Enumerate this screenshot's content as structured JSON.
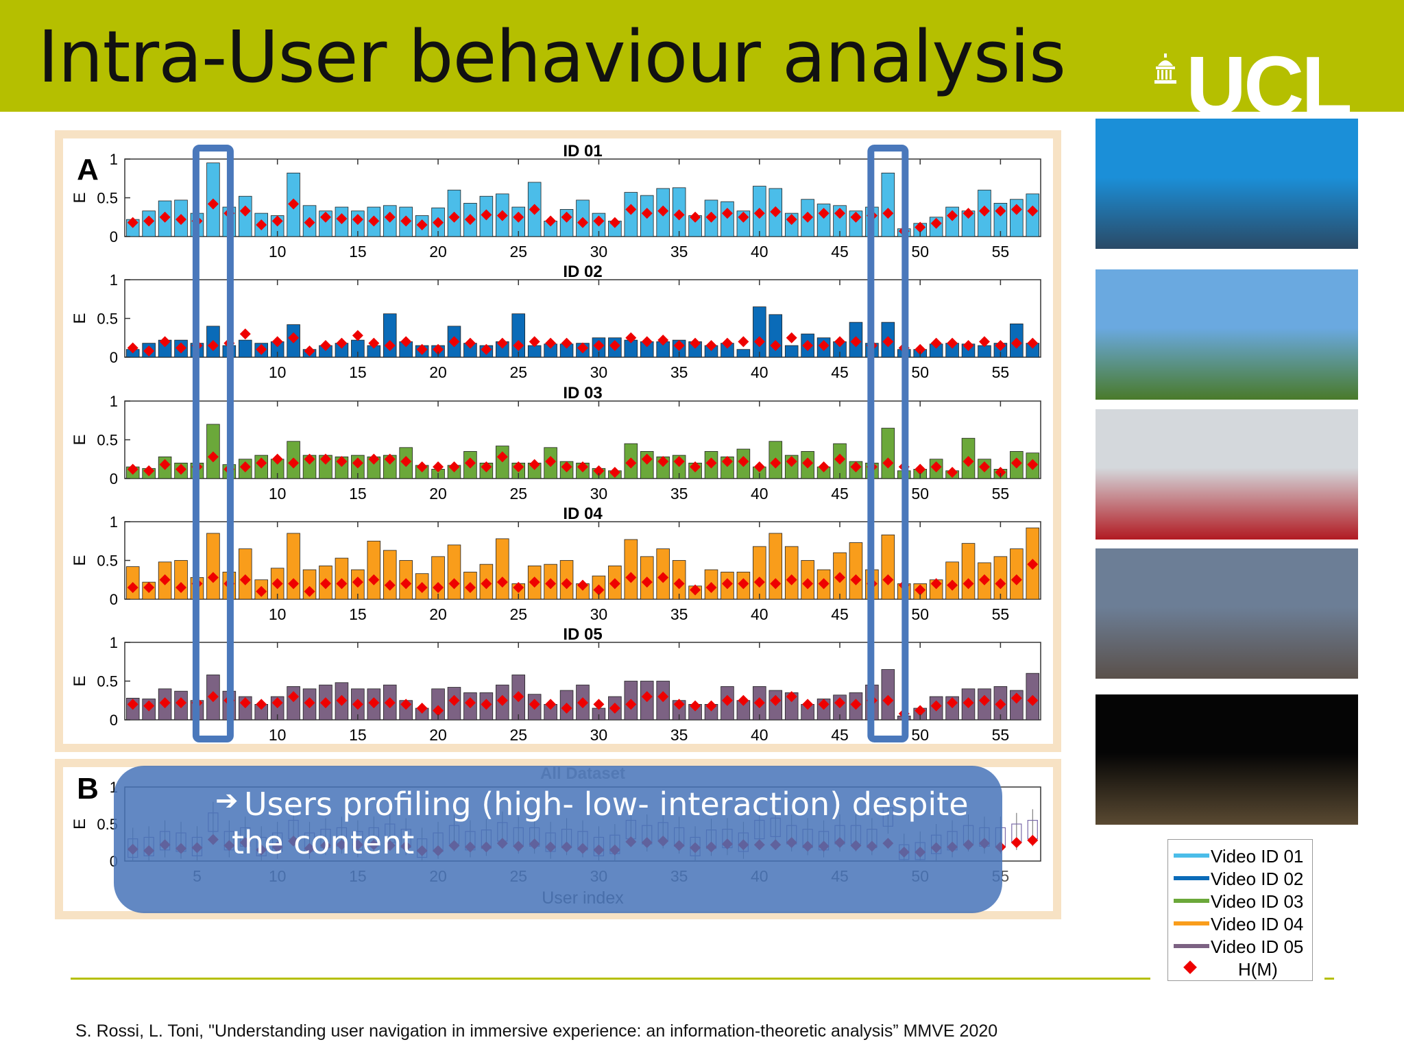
{
  "slide": {
    "title": "Intra-User behaviour analysis",
    "logo_text": "UCL",
    "citation": "S. Rossi, L. Toni, \"Understanding user navigation in immersive experience: an information-theoretic analysis” MMVE 2020",
    "callout_line1": "Users profiling (high- low- interaction) despite",
    "callout_line2": "the content",
    "callout_arrow": "➔"
  },
  "colors": {
    "header": "#b5bf00",
    "frame": "#f7e2c4",
    "highlight": "#4a78bb",
    "marker": "#ee0000"
  },
  "legend": [
    {
      "label": "Video ID 01",
      "color": "#4bbde9"
    },
    {
      "label": "Video ID 02",
      "color": "#0a6bb8"
    },
    {
      "label": "Video ID 03",
      "color": "#6ba83a"
    },
    {
      "label": "Video ID 04",
      "color": "#f99d1b"
    },
    {
      "label": "Video ID 05",
      "color": "#7c6283"
    },
    {
      "label": "H(M)",
      "color": "#ee0000"
    }
  ],
  "thumbnails": [
    {
      "name": "underwater-scene",
      "sky": "#1b8fd8",
      "ground": "#2a4a66"
    },
    {
      "name": "eiffel-tower-park",
      "sky": "#6aa9e0",
      "ground": "#4a7a2a"
    },
    {
      "name": "roller-coaster",
      "sky": "#d4d8dc",
      "ground": "#b11a22"
    },
    {
      "name": "city-square-cloudy",
      "sky": "#6c7e96",
      "ground": "#5a504a"
    },
    {
      "name": "venice-night",
      "sky": "#050505",
      "ground": "#5a4a32"
    }
  ],
  "chart_data": {
    "type": "bar",
    "panel_a_label": "A",
    "panel_b_label": "B",
    "ylabel": "E",
    "xlabel": "User index",
    "ylim": [
      0,
      1
    ],
    "yticks": [
      "0",
      "0.5",
      "1"
    ],
    "xticks": [
      10,
      15,
      20,
      25,
      30,
      35,
      40,
      45,
      50,
      55
    ],
    "xticks_b": [
      5,
      10,
      15,
      20,
      25,
      30,
      35,
      40,
      45,
      50,
      55
    ],
    "n_users": 57,
    "highlighted_users": [
      6,
      48
    ],
    "series": [
      {
        "name": "ID 01",
        "color": "#4bbde9",
        "values": [
          0.22,
          0.33,
          0.46,
          0.47,
          0.3,
          0.95,
          0.38,
          0.52,
          0.3,
          0.27,
          0.82,
          0.4,
          0.33,
          0.38,
          0.33,
          0.38,
          0.4,
          0.38,
          0.27,
          0.37,
          0.6,
          0.43,
          0.52,
          0.55,
          0.38,
          0.7,
          0.2,
          0.35,
          0.47,
          0.3,
          0.2,
          0.57,
          0.53,
          0.62,
          0.63,
          0.27,
          0.47,
          0.45,
          0.33,
          0.65,
          0.62,
          0.3,
          0.48,
          0.42,
          0.4,
          0.33,
          0.38,
          0.82,
          0.1,
          0.17,
          0.25,
          0.38,
          0.33,
          0.6,
          0.43,
          0.48,
          0.55
        ],
        "hm": [
          0.18,
          0.2,
          0.25,
          0.22,
          0.2,
          0.42,
          0.3,
          0.33,
          0.15,
          0.2,
          0.42,
          0.18,
          0.25,
          0.23,
          0.22,
          0.2,
          0.25,
          0.2,
          0.15,
          0.18,
          0.25,
          0.22,
          0.28,
          0.27,
          0.25,
          0.35,
          0.2,
          0.25,
          0.18,
          0.2,
          0.18,
          0.35,
          0.3,
          0.33,
          0.28,
          0.25,
          0.25,
          0.3,
          0.25,
          0.3,
          0.32,
          0.22,
          0.25,
          0.3,
          0.3,
          0.25,
          0.27,
          0.3,
          0.07,
          0.12,
          0.17,
          0.27,
          0.3,
          0.33,
          0.33,
          0.35,
          0.33
        ]
      },
      {
        "name": "ID 02",
        "color": "#0a6bb8",
        "values": [
          0.1,
          0.18,
          0.22,
          0.22,
          0.18,
          0.4,
          0.15,
          0.22,
          0.18,
          0.2,
          0.42,
          0.1,
          0.15,
          0.18,
          0.22,
          0.15,
          0.56,
          0.2,
          0.15,
          0.15,
          0.4,
          0.18,
          0.15,
          0.2,
          0.56,
          0.15,
          0.17,
          0.17,
          0.18,
          0.25,
          0.25,
          0.22,
          0.2,
          0.2,
          0.22,
          0.2,
          0.15,
          0.18,
          0.1,
          0.65,
          0.55,
          0.15,
          0.3,
          0.25,
          0.2,
          0.45,
          0.18,
          0.45,
          0.1,
          0.1,
          0.17,
          0.18,
          0.17,
          0.15,
          0.18,
          0.43,
          0.18
        ],
        "hm": [
          0.12,
          0.08,
          0.2,
          0.12,
          0.15,
          0.15,
          0.18,
          0.3,
          0.1,
          0.2,
          0.25,
          0.08,
          0.15,
          0.18,
          0.28,
          0.18,
          0.15,
          0.2,
          0.1,
          0.1,
          0.2,
          0.18,
          0.1,
          0.18,
          0.15,
          0.2,
          0.18,
          0.18,
          0.12,
          0.15,
          0.15,
          0.25,
          0.2,
          0.22,
          0.15,
          0.18,
          0.15,
          0.18,
          0.2,
          0.2,
          0.15,
          0.25,
          0.15,
          0.15,
          0.2,
          0.2,
          0.15,
          0.2,
          0.12,
          0.1,
          0.18,
          0.18,
          0.15,
          0.2,
          0.15,
          0.18,
          0.18
        ]
      },
      {
        "name": "ID 03",
        "color": "#6ba83a",
        "values": [
          0.15,
          0.13,
          0.28,
          0.2,
          0.2,
          0.7,
          0.18,
          0.25,
          0.3,
          0.25,
          0.48,
          0.3,
          0.3,
          0.28,
          0.3,
          0.28,
          0.3,
          0.4,
          0.17,
          0.12,
          0.17,
          0.35,
          0.2,
          0.42,
          0.2,
          0.2,
          0.4,
          0.22,
          0.2,
          0.13,
          0.1,
          0.45,
          0.35,
          0.28,
          0.3,
          0.2,
          0.35,
          0.28,
          0.38,
          0.15,
          0.48,
          0.3,
          0.35,
          0.15,
          0.45,
          0.22,
          0.2,
          0.65,
          0.1,
          0.12,
          0.25,
          0.1,
          0.52,
          0.25,
          0.12,
          0.35,
          0.33
        ],
        "hm": [
          0.12,
          0.1,
          0.18,
          0.12,
          0.15,
          0.28,
          0.12,
          0.15,
          0.2,
          0.25,
          0.2,
          0.25,
          0.25,
          0.22,
          0.2,
          0.25,
          0.25,
          0.22,
          0.15,
          0.15,
          0.15,
          0.2,
          0.15,
          0.28,
          0.15,
          0.18,
          0.22,
          0.15,
          0.15,
          0.1,
          0.08,
          0.2,
          0.25,
          0.22,
          0.22,
          0.15,
          0.2,
          0.22,
          0.22,
          0.15,
          0.2,
          0.22,
          0.2,
          0.15,
          0.25,
          0.15,
          0.15,
          0.2,
          0.15,
          0.12,
          0.15,
          0.08,
          0.22,
          0.15,
          0.08,
          0.2,
          0.18
        ]
      },
      {
        "name": "ID 04",
        "color": "#f99d1b",
        "values": [
          0.42,
          0.22,
          0.48,
          0.5,
          0.28,
          0.85,
          0.35,
          0.65,
          0.25,
          0.4,
          0.85,
          0.38,
          0.43,
          0.53,
          0.38,
          0.75,
          0.63,
          0.5,
          0.33,
          0.55,
          0.7,
          0.35,
          0.45,
          0.78,
          0.2,
          0.43,
          0.45,
          0.5,
          0.2,
          0.3,
          0.43,
          0.77,
          0.55,
          0.65,
          0.5,
          0.17,
          0.38,
          0.35,
          0.35,
          0.68,
          0.85,
          0.68,
          0.5,
          0.38,
          0.6,
          0.73,
          0.38,
          0.83,
          0.2,
          0.2,
          0.25,
          0.48,
          0.72,
          0.47,
          0.55,
          0.65,
          0.92
        ],
        "hm": [
          0.15,
          0.15,
          0.25,
          0.15,
          0.2,
          0.28,
          0.2,
          0.25,
          0.1,
          0.2,
          0.2,
          0.1,
          0.2,
          0.2,
          0.22,
          0.25,
          0.18,
          0.2,
          0.15,
          0.15,
          0.2,
          0.15,
          0.2,
          0.22,
          0.15,
          0.22,
          0.2,
          0.2,
          0.18,
          0.12,
          0.2,
          0.28,
          0.22,
          0.28,
          0.2,
          0.12,
          0.15,
          0.2,
          0.2,
          0.22,
          0.2,
          0.25,
          0.2,
          0.2,
          0.28,
          0.25,
          0.2,
          0.25,
          0.18,
          0.12,
          0.2,
          0.18,
          0.2,
          0.25,
          0.2,
          0.25,
          0.45
        ]
      },
      {
        "name": "ID 05",
        "color": "#7c6283",
        "values": [
          0.28,
          0.27,
          0.4,
          0.37,
          0.25,
          0.58,
          0.37,
          0.3,
          0.2,
          0.3,
          0.43,
          0.4,
          0.45,
          0.48,
          0.4,
          0.4,
          0.45,
          0.25,
          0.15,
          0.4,
          0.42,
          0.35,
          0.35,
          0.45,
          0.58,
          0.33,
          0.2,
          0.38,
          0.45,
          0.15,
          0.3,
          0.5,
          0.5,
          0.5,
          0.25,
          0.2,
          0.2,
          0.43,
          0.25,
          0.43,
          0.38,
          0.35,
          0.2,
          0.27,
          0.32,
          0.35,
          0.45,
          0.65,
          0.05,
          0.15,
          0.3,
          0.3,
          0.4,
          0.4,
          0.43,
          0.38,
          0.6
        ],
        "hm": [
          0.2,
          0.18,
          0.22,
          0.22,
          0.22,
          0.3,
          0.25,
          0.22,
          0.2,
          0.22,
          0.3,
          0.22,
          0.22,
          0.25,
          0.2,
          0.22,
          0.22,
          0.2,
          0.15,
          0.12,
          0.25,
          0.22,
          0.2,
          0.25,
          0.3,
          0.2,
          0.2,
          0.15,
          0.22,
          0.2,
          0.15,
          0.2,
          0.3,
          0.3,
          0.2,
          0.18,
          0.18,
          0.25,
          0.25,
          0.22,
          0.25,
          0.3,
          0.2,
          0.2,
          0.22,
          0.2,
          0.25,
          0.25,
          0.08,
          0.12,
          0.18,
          0.22,
          0.22,
          0.25,
          0.2,
          0.28,
          0.25
        ]
      }
    ],
    "panel_b": {
      "title": "All Dataset",
      "median": [
        0.2,
        0.22,
        0.3,
        0.28,
        0.22,
        0.55,
        0.3,
        0.35,
        0.22,
        0.28,
        0.45,
        0.28,
        0.33,
        0.35,
        0.3,
        0.35,
        0.4,
        0.33,
        0.2,
        0.28,
        0.38,
        0.3,
        0.32,
        0.42,
        0.35,
        0.35,
        0.28,
        0.33,
        0.3,
        0.22,
        0.25,
        0.45,
        0.38,
        0.42,
        0.35,
        0.22,
        0.32,
        0.33,
        0.28,
        0.45,
        0.48,
        0.38,
        0.33,
        0.3,
        0.38,
        0.38,
        0.33,
        0.62,
        0.12,
        0.15,
        0.25,
        0.3,
        0.38,
        0.35,
        0.35,
        0.4,
        0.45
      ],
      "hm": [
        0.16,
        0.14,
        0.22,
        0.17,
        0.18,
        0.29,
        0.21,
        0.25,
        0.15,
        0.19,
        0.27,
        0.17,
        0.21,
        0.22,
        0.22,
        0.22,
        0.21,
        0.2,
        0.14,
        0.14,
        0.21,
        0.19,
        0.19,
        0.24,
        0.2,
        0.23,
        0.19,
        0.19,
        0.17,
        0.15,
        0.15,
        0.26,
        0.25,
        0.27,
        0.21,
        0.18,
        0.19,
        0.23,
        0.22,
        0.22,
        0.22,
        0.25,
        0.2,
        0.2,
        0.25,
        0.21,
        0.2,
        0.24,
        0.12,
        0.12,
        0.18,
        0.19,
        0.22,
        0.24,
        0.19,
        0.25,
        0.28
      ]
    }
  }
}
